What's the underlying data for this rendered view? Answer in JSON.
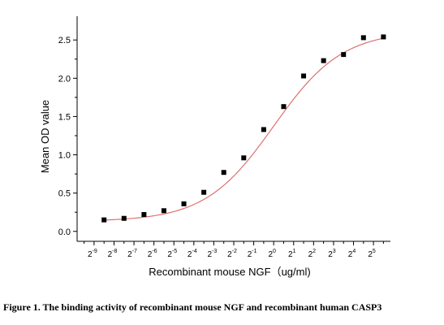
{
  "chart_data": {
    "type": "scatter",
    "title": "",
    "xlabel": "Recombinant mouse NGF（ug/ml)",
    "ylabel": "Mean OD value",
    "x_tick_base": "2",
    "x_ticks": [
      -9,
      -8,
      -7,
      -6,
      -5,
      -4,
      -3,
      -2,
      -1,
      0,
      1,
      2,
      3,
      4,
      5
    ],
    "y_ticks": [
      "0.0",
      "0.5",
      "1.0",
      "1.5",
      "2.0",
      "2.5"
    ],
    "ylim": [
      -0.13,
      2.81
    ],
    "xlim": [
      -9.85,
      5.85
    ],
    "grid": false,
    "legend": "none",
    "series": [
      {
        "marker_color": "#000000",
        "line_color": "#e07070",
        "points": [
          {
            "x": -8.5,
            "y": 0.15
          },
          {
            "x": -7.5,
            "y": 0.17
          },
          {
            "x": -6.5,
            "y": 0.22
          },
          {
            "x": -5.5,
            "y": 0.27
          },
          {
            "x": -4.5,
            "y": 0.36
          },
          {
            "x": -3.5,
            "y": 0.51
          },
          {
            "x": -2.5,
            "y": 0.77
          },
          {
            "x": -1.5,
            "y": 0.96
          },
          {
            "x": -0.5,
            "y": 1.33
          },
          {
            "x": 0.5,
            "y": 1.63
          },
          {
            "x": 1.5,
            "y": 2.03
          },
          {
            "x": 2.5,
            "y": 2.23
          },
          {
            "x": 3.5,
            "y": 2.31
          },
          {
            "x": 4.5,
            "y": 2.53
          },
          {
            "x": 5.5,
            "y": 2.54
          }
        ],
        "fit": {
          "model": "4PL",
          "bottom": 0.13,
          "top": 2.62,
          "ec50_log2": 0.0,
          "hill_per_log2": 0.42
        }
      }
    ]
  },
  "caption": "Figure 1. The binding activity of recombinant mouse NGF and recombinant human CASP3"
}
